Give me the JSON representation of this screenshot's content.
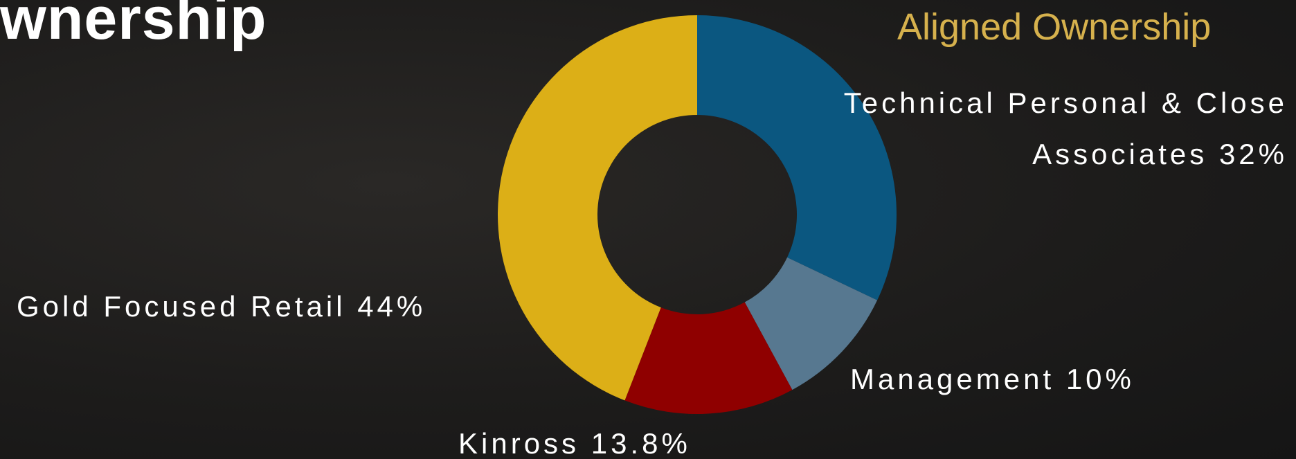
{
  "header": {
    "title": "wnership"
  },
  "chart_data": {
    "type": "donut",
    "title": "Aligned Ownership",
    "categories": [
      "Technical Personal & Close Associates",
      "Management",
      "Kinross",
      "Gold Focused Retail"
    ],
    "values": [
      32,
      10,
      13.8,
      44
    ],
    "value_labels": [
      "32%",
      "10%",
      "13.8%",
      "44%"
    ],
    "colors": [
      "#0b5780",
      "#577890",
      "#8f0000",
      "#dcaf17"
    ]
  }
}
